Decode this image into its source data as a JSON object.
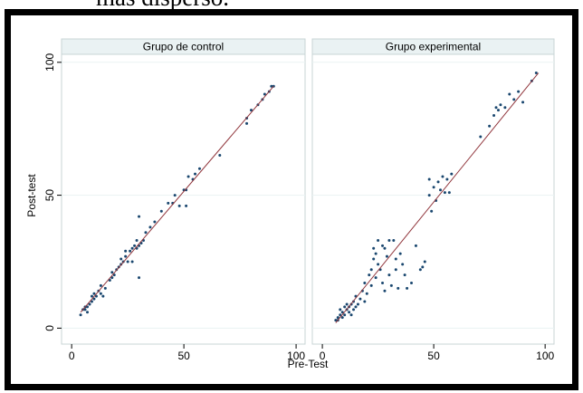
{
  "caption": "más disperso.",
  "x_label": "Pre-Test",
  "y_label": "Post-test",
  "chart_data": [
    {
      "type": "scatter",
      "title": "Grupo de control",
      "color": "#1a476f",
      "fit_color": "#90353b",
      "x": [
        4,
        5,
        6,
        6,
        7,
        7,
        8,
        9,
        9,
        10,
        10,
        11,
        12,
        13,
        13,
        14,
        15,
        17,
        18,
        18,
        19,
        20,
        21,
        22,
        22,
        23,
        24,
        24,
        25,
        26,
        27,
        27,
        28,
        29,
        29,
        30,
        30,
        30,
        31,
        32,
        33,
        35,
        37,
        40,
        43,
        45,
        46,
        48,
        50,
        51,
        51,
        52,
        54,
        55,
        57,
        66,
        78,
        78,
        80,
        83,
        85,
        86,
        88,
        89,
        90
      ],
      "y": [
        5,
        7,
        7,
        8,
        6,
        8,
        9,
        10,
        12,
        11,
        13,
        12,
        14,
        13,
        16,
        12,
        15,
        18,
        19,
        21,
        20,
        22,
        23,
        24,
        26,
        25,
        27,
        29,
        25,
        29,
        30,
        25,
        31,
        30,
        33,
        31,
        42,
        19,
        32,
        33,
        36,
        38,
        40,
        44,
        47,
        47,
        50,
        46,
        52,
        46,
        52,
        57,
        56,
        58,
        60,
        65,
        77,
        79,
        82,
        84,
        86,
        88,
        89,
        91,
        91
      ],
      "fit": {
        "x": [
          4,
          90
        ],
        "y": [
          6,
          91
        ]
      },
      "xlim": [
        -4.5,
        104
      ],
      "ylim": [
        -6,
        103
      ],
      "xticks": [
        0,
        50,
        100
      ],
      "yticks": [
        0,
        50,
        100
      ],
      "grid": true,
      "ytick_labels": true
    },
    {
      "type": "scatter",
      "title": "Grupo experimental",
      "color": "#1a476f",
      "fit_color": "#90353b",
      "x": [
        6,
        7,
        7,
        8,
        8,
        9,
        9,
        10,
        10,
        11,
        11,
        12,
        12,
        13,
        13,
        14,
        14,
        15,
        15,
        16,
        17,
        18,
        19,
        19,
        20,
        21,
        22,
        22,
        23,
        23,
        24,
        24,
        25,
        25,
        26,
        27,
        27,
        28,
        28,
        29,
        30,
        30,
        31,
        32,
        33,
        33,
        34,
        35,
        36,
        37,
        38,
        40,
        42,
        44,
        45,
        46,
        48,
        48,
        49,
        50,
        51,
        52,
        53,
        54,
        55,
        56,
        57,
        58,
        71,
        75,
        77,
        78,
        79,
        80,
        82,
        84,
        86,
        88,
        90,
        94,
        96
      ],
      "y": [
        3,
        4,
        3,
        5,
        7,
        4,
        6,
        8,
        5,
        7,
        9,
        6,
        8,
        9,
        5,
        7,
        10,
        8,
        12,
        9,
        11,
        14,
        10,
        17,
        13,
        20,
        22,
        16,
        26,
        30,
        28,
        19,
        33,
        24,
        22,
        31,
        17,
        30,
        14,
        27,
        33,
        20,
        16,
        33,
        26,
        22,
        15,
        28,
        24,
        20,
        15,
        17,
        31,
        22,
        23,
        25,
        50,
        56,
        44,
        53,
        48,
        55,
        52,
        57,
        51,
        56,
        51,
        58,
        72,
        76,
        80,
        83,
        82,
        84,
        83,
        88,
        86,
        89,
        85,
        93,
        96
      ],
      "fit": {
        "x": [
          6,
          97
        ],
        "y": [
          2,
          96
        ]
      },
      "xlim": [
        -4.5,
        104
      ],
      "ylim": [
        -6,
        103
      ],
      "xticks": [
        0,
        50,
        100
      ],
      "yticks": [
        0,
        50,
        100
      ],
      "grid": true,
      "ytick_labels": false
    }
  ]
}
